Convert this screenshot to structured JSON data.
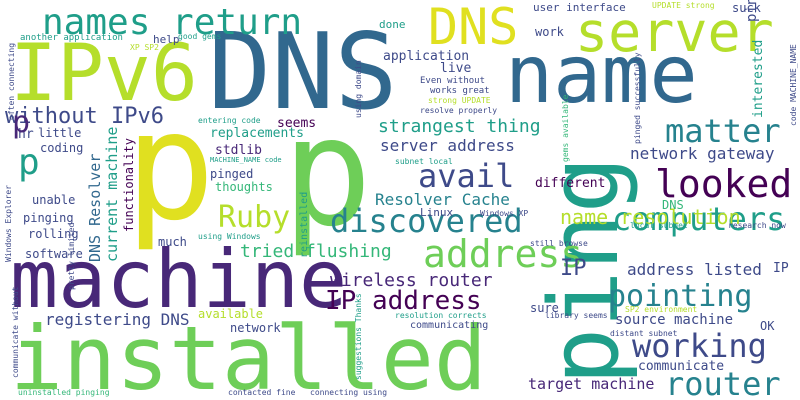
{
  "palette": {
    "dark_purple": "#440154",
    "indigo": "#482878",
    "navy_blue": "#3e4a89",
    "steel_blue": "#31688e",
    "teal": "#26828e",
    "sea_green": "#1f9e89",
    "green": "#35b779",
    "light_green": "#6ece58",
    "lime": "#b5de2b",
    "yellow": "#e0e020"
  },
  "words": [
    {
      "text": "p"
    },
    {
      "text": "p"
    },
    {
      "text": "DNS"
    },
    {
      "text": "name"
    },
    {
      "text": "machine"
    },
    {
      "text": "installed"
    },
    {
      "text": "IPv6"
    },
    {
      "text": "ping"
    },
    {
      "text": "server"
    },
    {
      "text": "DNS"
    },
    {
      "text": "names return"
    },
    {
      "text": "address"
    },
    {
      "text": "discovered"
    },
    {
      "text": "looked"
    },
    {
      "text": "matter"
    },
    {
      "text": "avail"
    },
    {
      "text": "computers"
    },
    {
      "text": "pointing"
    },
    {
      "text": "working"
    },
    {
      "text": "router"
    },
    {
      "text": "IP address"
    },
    {
      "text": "Ruby"
    },
    {
      "text": "name resolution"
    },
    {
      "text": "without IPv6"
    },
    {
      "text": "strangest thing"
    },
    {
      "text": "server address"
    },
    {
      "text": "network gateway"
    },
    {
      "text": "Resolver Cache"
    },
    {
      "text": "wireless router"
    },
    {
      "text": "address listed"
    },
    {
      "text": "tried flushing"
    },
    {
      "text": "registering DNS"
    },
    {
      "text": "source machine"
    },
    {
      "text": "target machine"
    },
    {
      "text": "communicate"
    },
    {
      "text": "DNS Resolver"
    },
    {
      "text": "current machine"
    },
    {
      "text": "p"
    },
    {
      "text": "replacements"
    },
    {
      "text": "application"
    },
    {
      "text": "user interface"
    },
    {
      "text": "interested"
    },
    {
      "text": "seems"
    },
    {
      "text": "done"
    },
    {
      "text": "work"
    },
    {
      "text": "help"
    },
    {
      "text": "live"
    },
    {
      "text": "stdlib"
    },
    {
      "text": "coding"
    },
    {
      "text": "little"
    },
    {
      "text": "pinged"
    },
    {
      "text": "thoughts"
    },
    {
      "text": "functionality"
    },
    {
      "text": "Linux"
    },
    {
      "text": "different"
    },
    {
      "text": "unable"
    },
    {
      "text": "pinging"
    },
    {
      "text": "rolling"
    },
    {
      "text": "software"
    },
    {
      "text": "much"
    },
    {
      "text": "DNS"
    },
    {
      "text": "IP"
    },
    {
      "text": "sure"
    },
    {
      "text": "available"
    },
    {
      "text": "network"
    },
    {
      "text": "OK"
    },
    {
      "text": "suck"
    },
    {
      "text": "hr"
    },
    {
      "text": "another application"
    },
    {
      "text": "good gems"
    },
    {
      "text": "XP SP2"
    },
    {
      "text": "UPDATE strong"
    },
    {
      "text": "Even without"
    },
    {
      "text": "works great"
    },
    {
      "text": "strong UPDATE"
    },
    {
      "text": "resolve properly"
    },
    {
      "text": "entering code"
    },
    {
      "text": "MACHINE_NAME code"
    },
    {
      "text": "subnet local"
    },
    {
      "text": "using Windows"
    },
    {
      "text": "reinstalled"
    },
    {
      "text": "Windows XP"
    },
    {
      "text": "still browse"
    },
    {
      "text": "local subnet"
    },
    {
      "text": "research now"
    },
    {
      "text": "library seems"
    },
    {
      "text": "resolution corrects"
    },
    {
      "text": "communicating"
    },
    {
      "text": "SP2 environment"
    },
    {
      "text": "distant subnet"
    },
    {
      "text": "contacted fine"
    },
    {
      "text": "connecting using"
    },
    {
      "text": "uninstalled pinging"
    },
    {
      "text": "suggestions Thanks"
    },
    {
      "text": "communicate without"
    },
    {
      "text": "often connecting"
    },
    {
      "text": "Windows Explorer"
    },
    {
      "text": "pretty limited"
    },
    {
      "text": "using domain"
    },
    {
      "text": "gems available"
    },
    {
      "text": "pinged successfully"
    },
    {
      "text": "code MACHINE_NAME"
    },
    {
      "text": "p"
    },
    {
      "text": "ping"
    },
    {
      "text": "IP"
    }
  ]
}
